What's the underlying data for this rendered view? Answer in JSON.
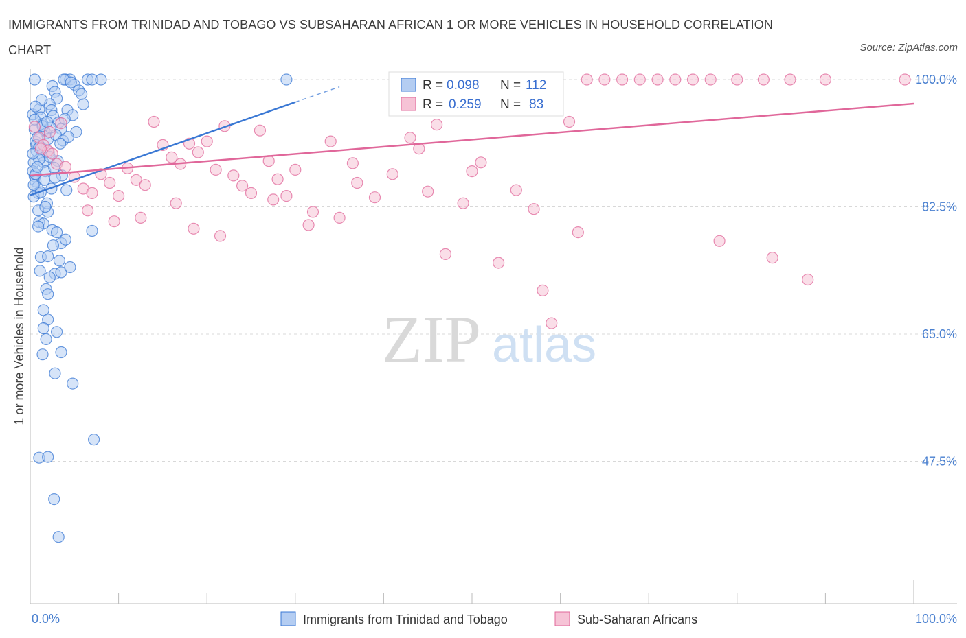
{
  "title": "IMMIGRANTS FROM TRINIDAD AND TOBAGO VS SUBSAHARAN AFRICAN 1 OR MORE VEHICLES IN HOUSEHOLD CORRELATION CHART",
  "source": "Source: ZipAtlas.com",
  "watermark": {
    "zip": "ZIP",
    "atlas": "atlas"
  },
  "colors": {
    "blue": "#3a78d4",
    "blue_fill": "#b4cdf2",
    "pink": "#e0679a",
    "pink_fill": "#f6c3d6",
    "grid": "#d8d8d8",
    "axis_text": "#4a80d0"
  },
  "legend_stats": [
    {
      "r_label": "R =",
      "r_value": "0.098",
      "n_label": "N =",
      "n_value": "112"
    },
    {
      "r_label": "R =",
      "r_value": "0.259",
      "n_label": "N =",
      "n_value": "83"
    }
  ],
  "chart_data": {
    "type": "scatter",
    "xlabel": "",
    "ylabel": "1 or more Vehicles in Household",
    "xlim": [
      0,
      100
    ],
    "ylim": [
      30,
      100
    ],
    "x_tick_labels": [
      "0.0%",
      "100.0%"
    ],
    "y_ticks": [
      100.0,
      82.5,
      65.0,
      47.5
    ],
    "y_tick_labels": [
      "100.0%",
      "82.5%",
      "65.0%",
      "47.5%"
    ],
    "grid": true,
    "legend_position": "bottom",
    "series": [
      {
        "name": "Immigrants from Trinidad and Tobago",
        "color": "#3a78d4",
        "trend": {
          "x": [
            0.0,
            30.0
          ],
          "y": [
            84.1,
            96.9
          ],
          "dashed_to": [
            35.0,
            99.0
          ]
        },
        "points": [
          [
            0.3,
            95.2
          ],
          [
            0.5,
            93.1
          ],
          [
            0.6,
            91.5
          ],
          [
            0.7,
            90.2
          ],
          [
            0.4,
            88.6
          ],
          [
            0.3,
            87.4
          ],
          [
            0.5,
            86.7
          ],
          [
            0.6,
            86.0
          ],
          [
            0.8,
            85.2
          ],
          [
            0.9,
            84.4
          ],
          [
            0.4,
            83.9
          ],
          [
            1.0,
            95.9
          ],
          [
            1.2,
            94.8
          ],
          [
            1.4,
            93.9
          ],
          [
            1.6,
            93.0
          ],
          [
            1.8,
            92.6
          ],
          [
            2.0,
            91.8
          ],
          [
            1.1,
            90.8
          ],
          [
            1.3,
            89.6
          ],
          [
            1.5,
            88.6
          ],
          [
            1.7,
            87.4
          ],
          [
            2.5,
            99.1
          ],
          [
            2.8,
            98.3
          ],
          [
            3.0,
            97.4
          ],
          [
            2.2,
            96.6
          ],
          [
            2.4,
            95.8
          ],
          [
            2.6,
            95.0
          ],
          [
            3.2,
            94.1
          ],
          [
            3.5,
            93.2
          ],
          [
            2.9,
            92.4
          ],
          [
            3.7,
            91.6
          ],
          [
            4.0,
            100.0
          ],
          [
            4.5,
            100.0
          ],
          [
            5.0,
            99.3
          ],
          [
            5.5,
            98.5
          ],
          [
            6.0,
            96.6
          ],
          [
            4.2,
            95.8
          ],
          [
            4.8,
            95.1
          ],
          [
            5.2,
            92.8
          ],
          [
            3.8,
            100.0
          ],
          [
            4.6,
            99.6
          ],
          [
            6.5,
            100.0
          ],
          [
            7.0,
            100.0
          ],
          [
            8.0,
            100.0
          ],
          [
            1.0,
            80.4
          ],
          [
            1.5,
            80.2
          ],
          [
            2.0,
            81.8
          ],
          [
            2.5,
            79.3
          ],
          [
            3.0,
            79.0
          ],
          [
            3.5,
            77.5
          ],
          [
            4.0,
            78.0
          ],
          [
            1.2,
            75.6
          ],
          [
            2.0,
            75.7
          ],
          [
            2.8,
            73.3
          ],
          [
            3.5,
            73.5
          ],
          [
            4.5,
            74.2
          ],
          [
            2.2,
            72.8
          ],
          [
            1.8,
            71.2
          ],
          [
            7.0,
            79.2
          ],
          [
            1.5,
            68.3
          ],
          [
            2.0,
            67.0
          ],
          [
            1.5,
            65.8
          ],
          [
            3.0,
            65.3
          ],
          [
            1.8,
            64.3
          ],
          [
            3.5,
            62.5
          ],
          [
            1.4,
            62.2
          ],
          [
            2.8,
            59.6
          ],
          [
            4.8,
            58.2
          ],
          [
            7.2,
            50.5
          ],
          [
            1.0,
            48.0
          ],
          [
            2.0,
            48.1
          ],
          [
            2.7,
            42.3
          ],
          [
            3.2,
            37.1
          ],
          [
            0.5,
            94.5
          ],
          [
            0.8,
            92.0
          ],
          [
            1.0,
            89.0
          ],
          [
            0.6,
            87.0
          ],
          [
            1.2,
            84.5
          ],
          [
            0.9,
            82.0
          ],
          [
            1.6,
            86.2
          ],
          [
            2.4,
            85.0
          ],
          [
            3.1,
            88.8
          ],
          [
            0.7,
            91.0
          ],
          [
            1.9,
            83.0
          ],
          [
            2.1,
            90.0
          ],
          [
            2.7,
            87.9
          ],
          [
            3.6,
            86.8
          ],
          [
            4.1,
            84.8
          ],
          [
            0.5,
            100.0
          ],
          [
            1.3,
            97.2
          ],
          [
            2.3,
            93.4
          ],
          [
            3.9,
            94.6
          ],
          [
            5.8,
            98.0
          ],
          [
            29.0,
            100.0
          ],
          [
            0.4,
            85.5
          ],
          [
            1.7,
            82.5
          ],
          [
            2.6,
            77.2
          ],
          [
            3.3,
            75.1
          ],
          [
            0.9,
            79.8
          ],
          [
            1.1,
            73.7
          ],
          [
            2.0,
            70.5
          ],
          [
            0.8,
            88.0
          ],
          [
            1.4,
            93.6
          ],
          [
            2.2,
            89.4
          ],
          [
            3.4,
            91.2
          ],
          [
            4.3,
            92.1
          ],
          [
            0.6,
            96.3
          ],
          [
            1.9,
            94.2
          ],
          [
            2.8,
            86.5
          ],
          [
            1.0,
            90.6
          ],
          [
            0.3,
            89.8
          ]
        ]
      },
      {
        "name": "Sub-Saharan Africans",
        "color": "#e0679a",
        "trend": {
          "x": [
            0.0,
            100.0
          ],
          "y": [
            86.8,
            96.7
          ]
        },
        "points": [
          [
            0.5,
            93.5
          ],
          [
            1.0,
            92.0
          ],
          [
            1.5,
            91.0
          ],
          [
            2.0,
            90.2
          ],
          [
            2.5,
            89.8
          ],
          [
            3.0,
            88.4
          ],
          [
            4.0,
            88.0
          ],
          [
            5.0,
            86.6
          ],
          [
            6.0,
            85.0
          ],
          [
            7.0,
            84.4
          ],
          [
            8.0,
            87.0
          ],
          [
            9.0,
            85.8
          ],
          [
            10.0,
            84.0
          ],
          [
            11.0,
            87.8
          ],
          [
            12.0,
            86.2
          ],
          [
            13.0,
            85.5
          ],
          [
            14.0,
            94.2
          ],
          [
            15.0,
            91.0
          ],
          [
            16.0,
            89.3
          ],
          [
            17.0,
            88.4
          ],
          [
            18.0,
            91.2
          ],
          [
            19.0,
            90.0
          ],
          [
            20.0,
            91.5
          ],
          [
            21.0,
            87.6
          ],
          [
            22.0,
            93.6
          ],
          [
            23.0,
            86.8
          ],
          [
            24.0,
            85.4
          ],
          [
            25.0,
            84.4
          ],
          [
            26.0,
            93.0
          ],
          [
            27.0,
            88.8
          ],
          [
            28.0,
            86.3
          ],
          [
            29.0,
            84.0
          ],
          [
            30.0,
            87.6
          ],
          [
            32.0,
            81.8
          ],
          [
            34.0,
            91.5
          ],
          [
            35.0,
            81.0
          ],
          [
            37.0,
            85.8
          ],
          [
            39.0,
            83.8
          ],
          [
            41.0,
            87.0
          ],
          [
            43.0,
            92.0
          ],
          [
            45.0,
            84.6
          ],
          [
            47.0,
            76.0
          ],
          [
            49.0,
            83.0
          ],
          [
            50.0,
            87.4
          ],
          [
            51.0,
            88.6
          ],
          [
            53.0,
            74.8
          ],
          [
            55.0,
            84.8
          ],
          [
            57.0,
            82.2
          ],
          [
            59.0,
            66.5
          ],
          [
            61.0,
            94.2
          ],
          [
            63.0,
            100.0
          ],
          [
            65.0,
            100.0
          ],
          [
            67.0,
            100.0
          ],
          [
            69.0,
            100.0
          ],
          [
            71.0,
            100.0
          ],
          [
            73.0,
            100.0
          ],
          [
            75.0,
            100.0
          ],
          [
            77.0,
            100.0
          ],
          [
            78.0,
            77.8
          ],
          [
            80.0,
            100.0
          ],
          [
            83.0,
            100.0
          ],
          [
            84.0,
            75.5
          ],
          [
            86.0,
            100.0
          ],
          [
            88.0,
            72.5
          ],
          [
            90.0,
            100.0
          ],
          [
            99.0,
            100.0
          ],
          [
            6.5,
            82.0
          ],
          [
            9.5,
            80.5
          ],
          [
            12.5,
            81.0
          ],
          [
            16.5,
            83.0
          ],
          [
            18.5,
            79.5
          ],
          [
            21.5,
            78.5
          ],
          [
            27.5,
            83.5
          ],
          [
            31.5,
            80.0
          ],
          [
            36.5,
            88.5
          ],
          [
            44.0,
            90.5
          ],
          [
            46.0,
            93.8
          ],
          [
            52.0,
            96.5
          ],
          [
            58.0,
            71.0
          ],
          [
            62.0,
            79.0
          ],
          [
            3.5,
            94.0
          ],
          [
            2.2,
            92.8
          ],
          [
            1.2,
            90.5
          ]
        ]
      }
    ]
  }
}
